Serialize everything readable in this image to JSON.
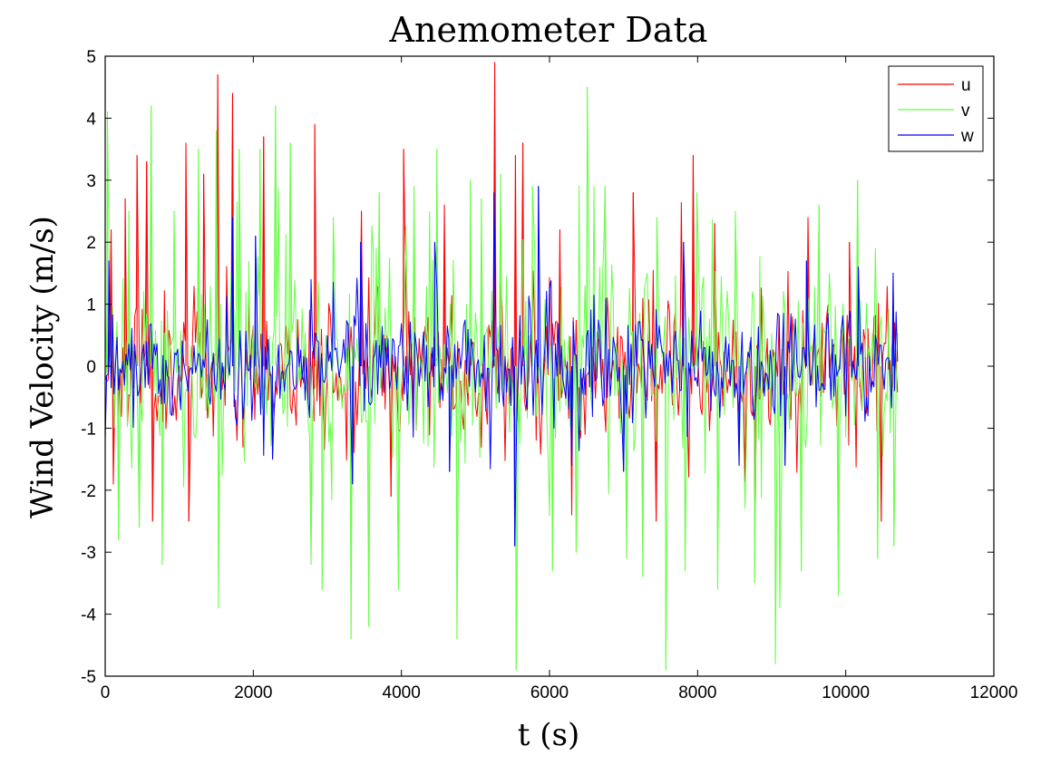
{
  "chart_data": {
    "type": "line",
    "title": "Anemometer Data",
    "xlabel": "t (s)",
    "ylabel": "Wind Velocity (m/s)",
    "xlim": [
      0,
      12000
    ],
    "ylim": [
      -5,
      5
    ],
    "xticks": [
      0,
      2000,
      4000,
      6000,
      8000,
      10000,
      12000
    ],
    "yticks": [
      -5,
      -4,
      -3,
      -2,
      -1,
      0,
      1,
      2,
      3,
      4,
      5
    ],
    "grid": false,
    "legend_position": "top-right",
    "sample_step_s": 20,
    "series": [
      {
        "name": "u",
        "color": "#ff0000",
        "x_range": [
          0,
          10700
        ],
        "mean": 0,
        "peaks": [
          {
            "x": 80,
            "y": 2.2
          },
          {
            "x": 110,
            "y": -1.9
          },
          {
            "x": 270,
            "y": 2.7
          },
          {
            "x": 430,
            "y": 3.4
          },
          {
            "x": 560,
            "y": 3.3
          },
          {
            "x": 640,
            "y": -2.5
          },
          {
            "x": 1090,
            "y": 3.6
          },
          {
            "x": 1130,
            "y": -2.5
          },
          {
            "x": 1330,
            "y": 3.1
          },
          {
            "x": 1520,
            "y": 4.7
          },
          {
            "x": 1720,
            "y": 4.4
          },
          {
            "x": 2140,
            "y": 3.7
          },
          {
            "x": 2830,
            "y": 3.9
          },
          {
            "x": 3460,
            "y": 2.5
          },
          {
            "x": 3860,
            "y": -2.1
          },
          {
            "x": 4030,
            "y": 3.5
          },
          {
            "x": 4580,
            "y": 2.6
          },
          {
            "x": 5260,
            "y": 4.9
          },
          {
            "x": 5540,
            "y": 3.4
          },
          {
            "x": 5640,
            "y": 3.6
          },
          {
            "x": 6140,
            "y": 2.2
          },
          {
            "x": 6300,
            "y": -2.4
          },
          {
            "x": 7130,
            "y": 2.8
          },
          {
            "x": 7440,
            "y": -2.5
          },
          {
            "x": 7940,
            "y": 3.4
          },
          {
            "x": 8230,
            "y": 2.3
          },
          {
            "x": 8780,
            "y": -2.2
          },
          {
            "x": 9490,
            "y": 2.4
          },
          {
            "x": 10050,
            "y": 2.0
          },
          {
            "x": 10480,
            "y": -2.5
          }
        ]
      },
      {
        "name": "v",
        "color": "#66ff44",
        "x_range": [
          0,
          10700
        ],
        "mean": 0,
        "peaks": [
          {
            "x": 30,
            "y": 4.1
          },
          {
            "x": 180,
            "y": -2.8
          },
          {
            "x": 320,
            "y": 2.5
          },
          {
            "x": 460,
            "y": -2.6
          },
          {
            "x": 620,
            "y": 4.2
          },
          {
            "x": 770,
            "y": -3.2
          },
          {
            "x": 930,
            "y": 2.5
          },
          {
            "x": 1260,
            "y": 3.5
          },
          {
            "x": 1500,
            "y": 3.8
          },
          {
            "x": 1530,
            "y": -3.9
          },
          {
            "x": 1810,
            "y": 3.5
          },
          {
            "x": 2090,
            "y": 3.5
          },
          {
            "x": 2300,
            "y": 4.2
          },
          {
            "x": 2500,
            "y": 3.6
          },
          {
            "x": 2780,
            "y": -3.2
          },
          {
            "x": 2930,
            "y": -3.6
          },
          {
            "x": 3080,
            "y": 2.4
          },
          {
            "x": 3320,
            "y": -4.4
          },
          {
            "x": 3560,
            "y": -4.2
          },
          {
            "x": 3700,
            "y": 2.8
          },
          {
            "x": 3960,
            "y": -3.6
          },
          {
            "x": 4170,
            "y": 2.9
          },
          {
            "x": 4480,
            "y": 3.5
          },
          {
            "x": 4750,
            "y": -4.4
          },
          {
            "x": 4930,
            "y": 3.0
          },
          {
            "x": 5080,
            "y": 2.7
          },
          {
            "x": 5340,
            "y": 3.1
          },
          {
            "x": 5550,
            "y": -4.9
          },
          {
            "x": 5770,
            "y": 2.9
          },
          {
            "x": 6040,
            "y": -3.3
          },
          {
            "x": 6360,
            "y": -3.0
          },
          {
            "x": 6510,
            "y": 4.5
          },
          {
            "x": 6750,
            "y": 2.9
          },
          {
            "x": 7040,
            "y": -3.1
          },
          {
            "x": 7260,
            "y": -3.4
          },
          {
            "x": 7450,
            "y": 2.4
          },
          {
            "x": 7570,
            "y": -4.9
          },
          {
            "x": 7830,
            "y": -3.3
          },
          {
            "x": 7990,
            "y": 2.8
          },
          {
            "x": 8270,
            "y": -3.6
          },
          {
            "x": 8510,
            "y": 2.5
          },
          {
            "x": 8770,
            "y": -3.5
          },
          {
            "x": 9050,
            "y": -4.8
          },
          {
            "x": 9110,
            "y": -3.9
          },
          {
            "x": 9400,
            "y": -3.3
          },
          {
            "x": 9640,
            "y": 2.6
          },
          {
            "x": 9900,
            "y": -3.7
          },
          {
            "x": 10160,
            "y": 3.0
          },
          {
            "x": 10430,
            "y": -3.1
          },
          {
            "x": 10650,
            "y": -2.9
          }
        ]
      },
      {
        "name": "w",
        "color": "#0000ff",
        "x_range": [
          0,
          10700
        ],
        "mean": 0,
        "peaks": [
          {
            "x": 50,
            "y": 1.7
          },
          {
            "x": 1720,
            "y": 2.4
          },
          {
            "x": 2030,
            "y": 2.1
          },
          {
            "x": 2260,
            "y": -1.5
          },
          {
            "x": 3340,
            "y": -1.9
          },
          {
            "x": 3450,
            "y": 2.0
          },
          {
            "x": 4450,
            "y": 2.0
          },
          {
            "x": 4650,
            "y": -1.7
          },
          {
            "x": 5250,
            "y": 2.8
          },
          {
            "x": 5530,
            "y": -2.9
          },
          {
            "x": 5850,
            "y": 2.9
          },
          {
            "x": 6300,
            "y": -1.6
          },
          {
            "x": 7000,
            "y": -1.7
          },
          {
            "x": 7810,
            "y": 2.0
          },
          {
            "x": 8560,
            "y": -1.6
          },
          {
            "x": 9180,
            "y": -1.6
          },
          {
            "x": 9470,
            "y": 1.7
          },
          {
            "x": 10170,
            "y": 1.6
          },
          {
            "x": 10640,
            "y": 1.5
          }
        ]
      }
    ]
  }
}
